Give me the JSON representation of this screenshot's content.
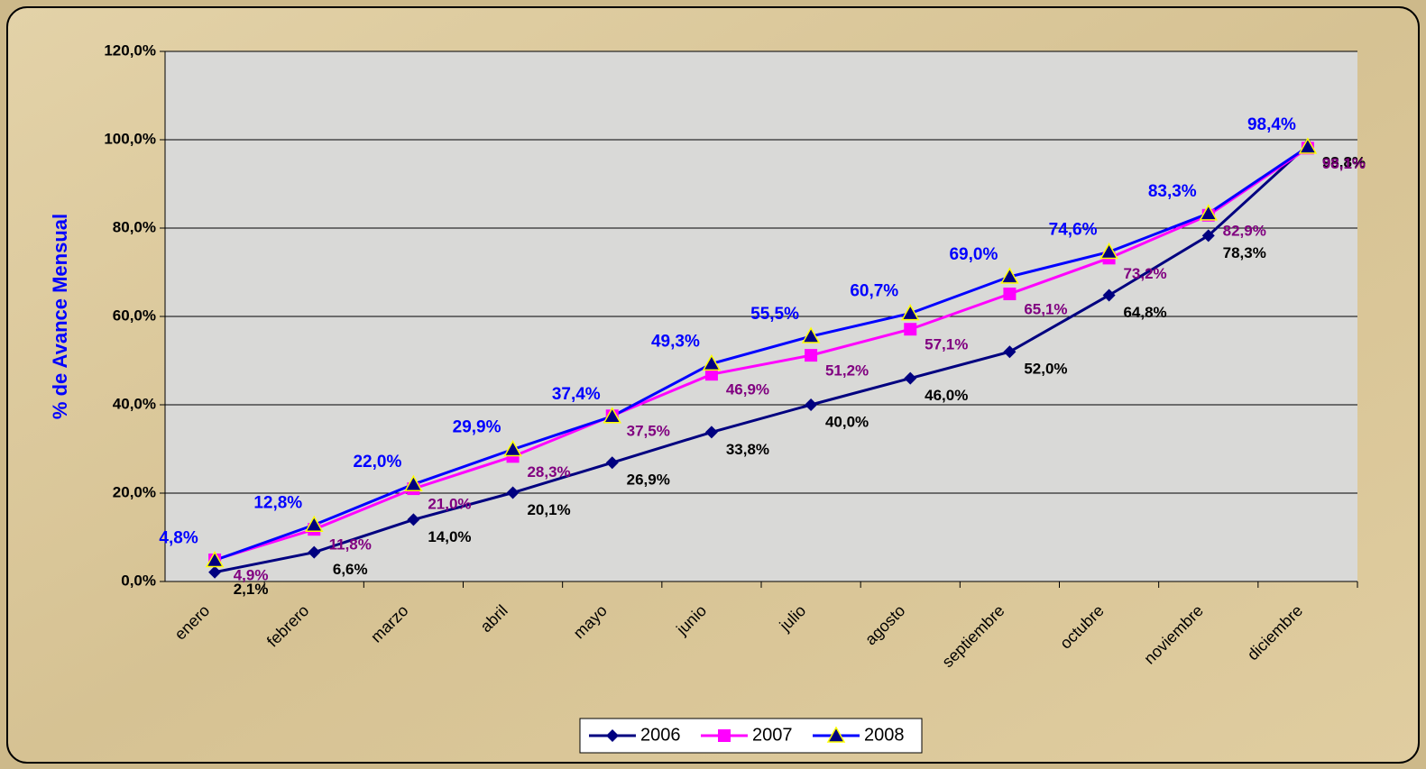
{
  "chart_data": {
    "type": "line",
    "y_axis_label": "% de Avance Mensual",
    "categories": [
      "enero",
      "febrero",
      "marzo",
      "abril",
      "mayo",
      "junio",
      "julio",
      "agosto",
      "septiembre",
      "octubre",
      "noviembre",
      "diciembre"
    ],
    "series": [
      {
        "name": "2006",
        "color": "#000080",
        "marker": "diamond",
        "values": [
          2.1,
          6.6,
          14.0,
          20.1,
          26.9,
          33.8,
          40.0,
          46.0,
          52.0,
          64.8,
          78.3,
          98.8
        ],
        "value_labels": [
          "2,1%",
          "6,6%",
          "14,0%",
          "20,1%",
          "26,9%",
          "33,8%",
          "40,0%",
          "46,0%",
          "52,0%",
          "64,8%",
          "78,3%",
          "98,8%"
        ]
      },
      {
        "name": "2007",
        "color": "#ff00ff",
        "marker": "square",
        "values": [
          4.9,
          11.8,
          21.0,
          28.3,
          37.5,
          46.9,
          51.2,
          57.1,
          65.1,
          73.2,
          82.9,
          98.1
        ],
        "value_labels": [
          "4,9%",
          "11,8%",
          "21,0%",
          "28,3%",
          "37,5%",
          "46,9%",
          "51,2%",
          "57,1%",
          "65,1%",
          "73,2%",
          "82,9%",
          "98,1%"
        ]
      },
      {
        "name": "2008",
        "color": "#0000ff",
        "marker": "triangle",
        "values": [
          4.8,
          12.8,
          22.0,
          29.9,
          37.4,
          49.3,
          55.5,
          60.7,
          69.0,
          74.6,
          83.3,
          98.4
        ],
        "value_labels": [
          "4,8%",
          "12,8%",
          "22,0%",
          "29,9%",
          "37,4%",
          "49,3%",
          "55,5%",
          "60,7%",
          "69,0%",
          "74,6%",
          "83,3%",
          "98,4%"
        ]
      }
    ],
    "ylim": [
      0,
      120
    ],
    "yticks": [
      {
        "value": 0,
        "label": "0,0%"
      },
      {
        "value": 20,
        "label": "20,0%"
      },
      {
        "value": 40,
        "label": "40,0%"
      },
      {
        "value": 60,
        "label": "60,0%"
      },
      {
        "value": 80,
        "label": "80,0%"
      },
      {
        "value": 100,
        "label": "100,0%"
      },
      {
        "value": 120,
        "label": "120,0%"
      }
    ],
    "grid": true,
    "legend": "bottom"
  }
}
